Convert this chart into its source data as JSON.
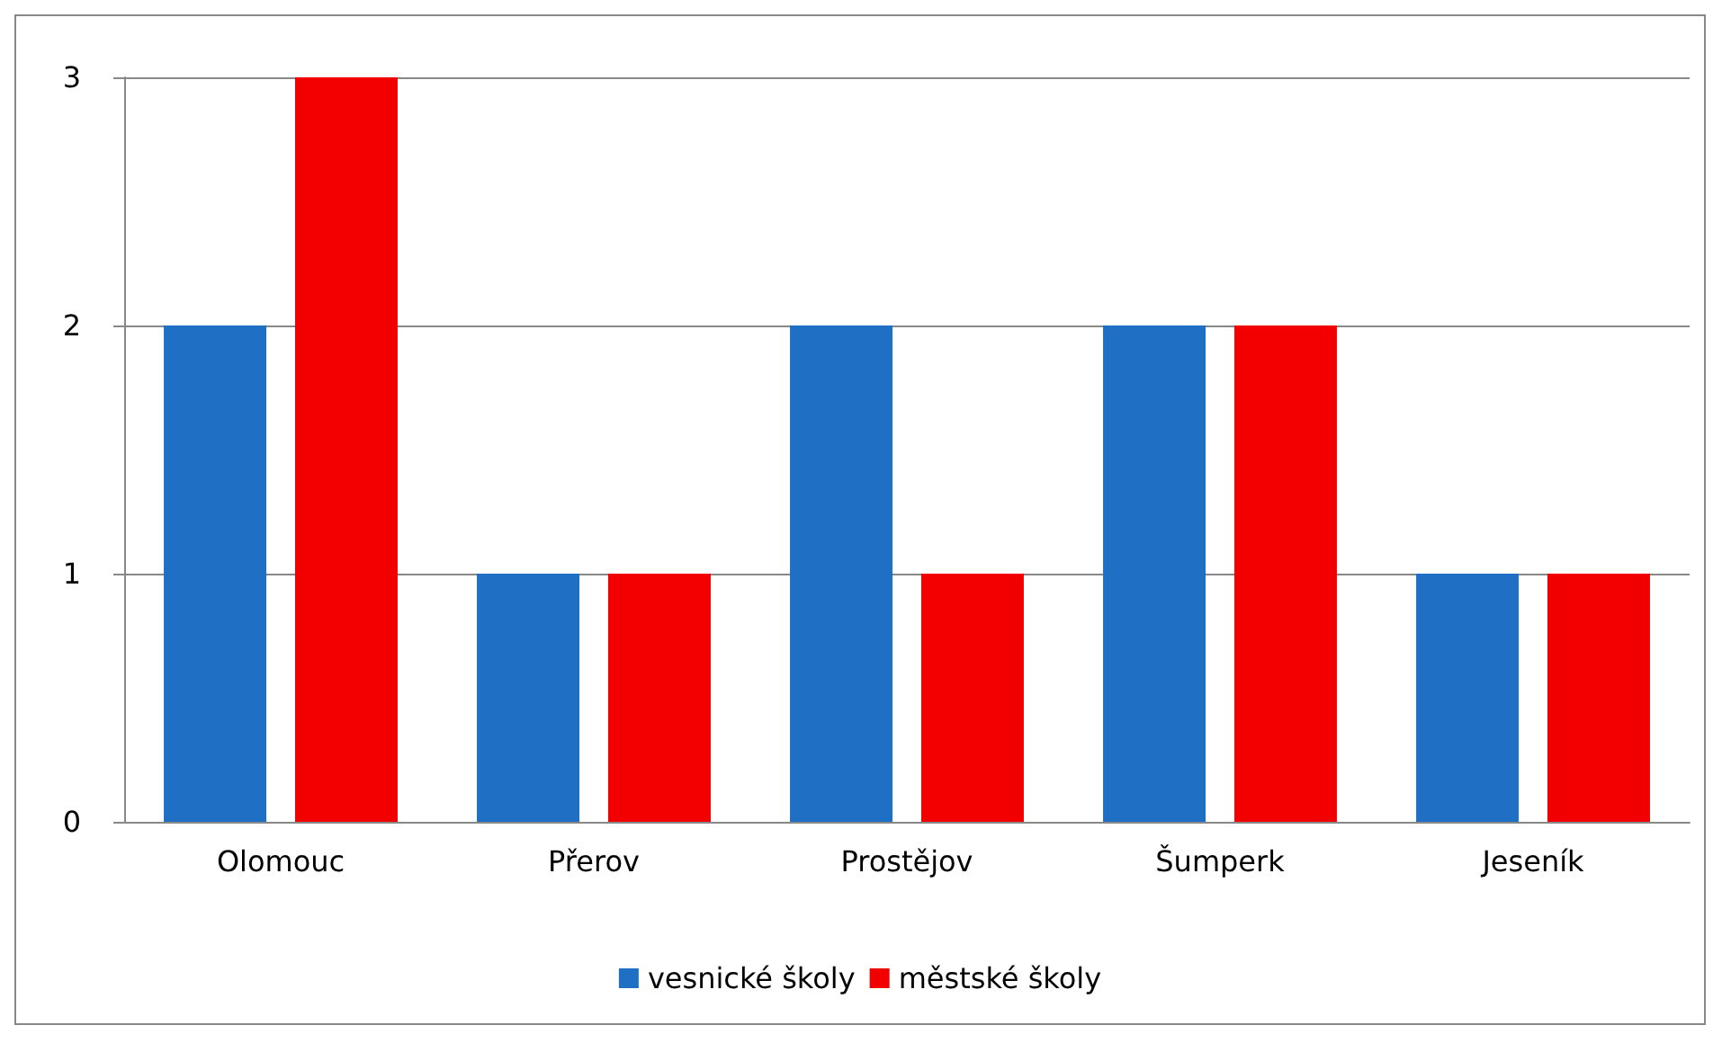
{
  "chart_data": {
    "type": "bar",
    "categories": [
      "Olomouc",
      "Přerov",
      "Prostějov",
      "Šumperk",
      "Jeseník"
    ],
    "series": [
      {
        "name": "vesnické školy",
        "color": "#1f6fc5",
        "values": [
          2,
          1,
          2,
          2,
          1
        ]
      },
      {
        "name": "městské školy",
        "color": "#f20000",
        "values": [
          3,
          1,
          1,
          2,
          1
        ]
      }
    ],
    "ylim": [
      0,
      3
    ],
    "yticks": [
      0,
      1,
      2,
      3
    ],
    "grid": "y",
    "legend": "bottom"
  }
}
